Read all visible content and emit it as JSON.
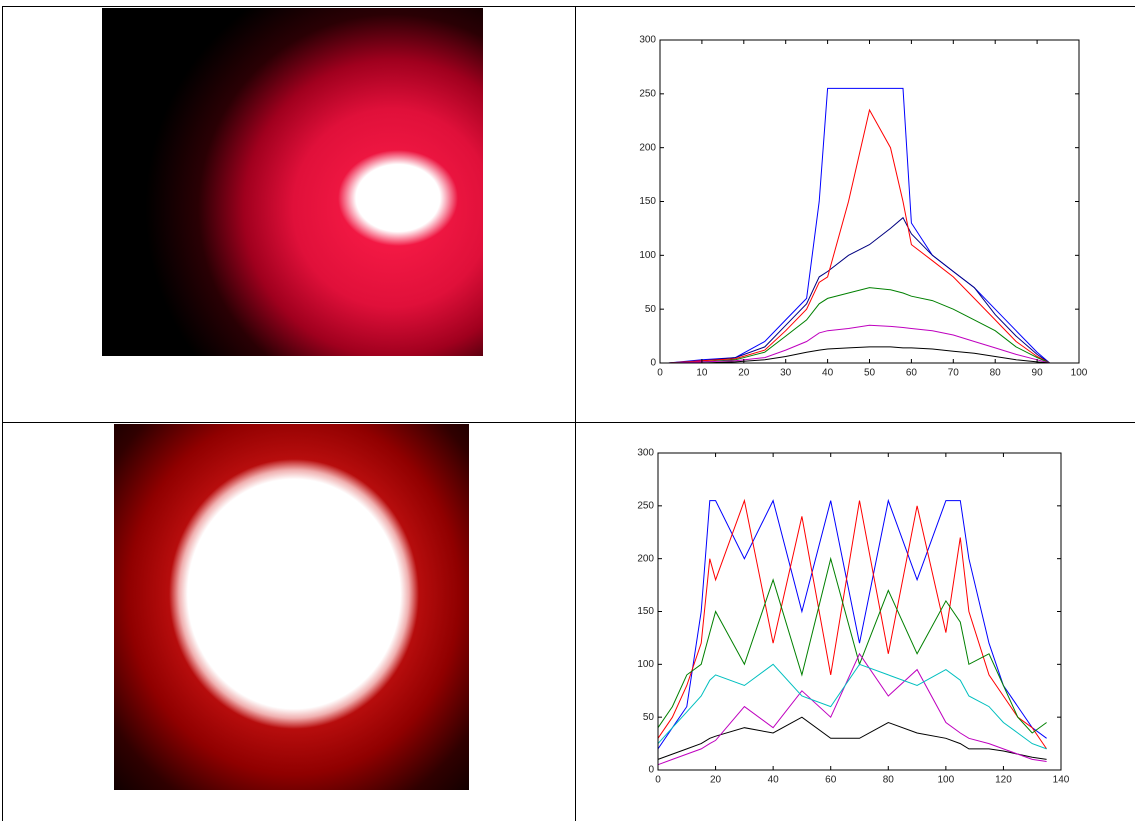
{
  "chart_data": [
    {
      "type": "line",
      "x": [
        2,
        10,
        18,
        25,
        30,
        35,
        38,
        40,
        45,
        50,
        55,
        58,
        60,
        65,
        70,
        75,
        80,
        85,
        90,
        93
      ],
      "series": [
        {
          "color": "#0000ff",
          "values": [
            0,
            3,
            5,
            20,
            40,
            60,
            150,
            255,
            255,
            255,
            255,
            255,
            130,
            100,
            85,
            70,
            50,
            30,
            10,
            0
          ]
        },
        {
          "color": "#000080",
          "values": [
            0,
            2,
            5,
            15,
            35,
            55,
            80,
            85,
            100,
            110,
            125,
            135,
            120,
            100,
            85,
            70,
            45,
            25,
            8,
            0
          ]
        },
        {
          "color": "#ff0000",
          "values": [
            0,
            2,
            4,
            12,
            30,
            50,
            75,
            80,
            150,
            235,
            200,
            150,
            110,
            95,
            80,
            60,
            40,
            20,
            6,
            0
          ]
        },
        {
          "color": "#008000",
          "values": [
            0,
            1,
            3,
            10,
            25,
            40,
            55,
            60,
            65,
            70,
            68,
            65,
            62,
            58,
            50,
            40,
            30,
            15,
            5,
            0
          ]
        },
        {
          "color": "#bf00bf",
          "values": [
            0,
            1,
            2,
            5,
            12,
            20,
            28,
            30,
            32,
            35,
            34,
            33,
            32,
            30,
            26,
            20,
            14,
            8,
            3,
            0
          ]
        },
        {
          "color": "#000000",
          "values": [
            0,
            0,
            1,
            3,
            6,
            10,
            12,
            13,
            14,
            15,
            15,
            14,
            14,
            13,
            11,
            9,
            6,
            3,
            1,
            0
          ]
        }
      ],
      "xlim": [
        0,
        100
      ],
      "ylim": [
        0,
        300
      ],
      "xticks": [
        0,
        10,
        20,
        30,
        40,
        50,
        60,
        70,
        80,
        90,
        100
      ],
      "yticks": [
        0,
        50,
        100,
        150,
        200,
        250,
        300
      ]
    },
    {
      "type": "line",
      "x": [
        0,
        5,
        10,
        15,
        18,
        20,
        30,
        40,
        50,
        60,
        70,
        80,
        90,
        100,
        105,
        108,
        115,
        120,
        125,
        130,
        135
      ],
      "series": [
        {
          "color": "#0000ff",
          "values": [
            20,
            40,
            60,
            150,
            255,
            255,
            200,
            255,
            150,
            255,
            120,
            255,
            180,
            255,
            255,
            200,
            120,
            80,
            60,
            40,
            30
          ]
        },
        {
          "color": "#ff0000",
          "values": [
            30,
            50,
            80,
            120,
            200,
            180,
            255,
            120,
            240,
            90,
            255,
            110,
            250,
            130,
            220,
            150,
            90,
            70,
            50,
            40,
            20
          ]
        },
        {
          "color": "#008000",
          "values": [
            40,
            60,
            90,
            100,
            130,
            150,
            100,
            180,
            90,
            200,
            100,
            170,
            110,
            160,
            140,
            100,
            110,
            80,
            50,
            35,
            45
          ]
        },
        {
          "color": "#000000",
          "values": [
            10,
            15,
            20,
            25,
            30,
            32,
            40,
            35,
            50,
            30,
            30,
            45,
            35,
            30,
            25,
            20,
            20,
            18,
            15,
            12,
            10
          ]
        },
        {
          "color": "#bf00bf",
          "values": [
            5,
            10,
            15,
            20,
            25,
            28,
            60,
            40,
            75,
            50,
            110,
            70,
            95,
            45,
            35,
            30,
            25,
            20,
            15,
            10,
            8
          ]
        },
        {
          "color": "#00bfbf",
          "values": [
            25,
            40,
            55,
            70,
            85,
            90,
            80,
            100,
            70,
            60,
            100,
            90,
            80,
            95,
            85,
            70,
            60,
            45,
            35,
            25,
            20
          ]
        }
      ],
      "xlim": [
        0,
        140
      ],
      "ylim": [
        0,
        300
      ],
      "xticks": [
        0,
        20,
        40,
        60,
        80,
        100,
        120,
        140
      ],
      "yticks": [
        0,
        50,
        100,
        150,
        200,
        250,
        300
      ]
    }
  ]
}
